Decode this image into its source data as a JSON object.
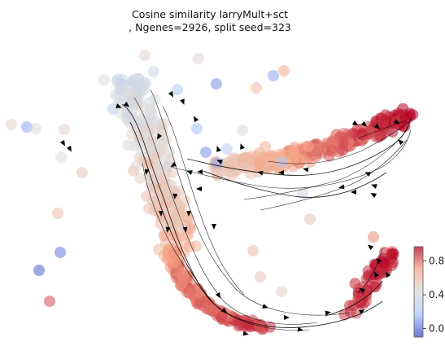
{
  "chart_data": {
    "type": "scatter",
    "title": "Cosine similarity larryMult+sct",
    "subtitle": ", Ngenes=2926, split seed=323",
    "xlabel": "",
    "ylabel": "",
    "axes_visible": false,
    "grid": false,
    "colormap": "coolwarm",
    "colorbar": {
      "vmin": -0.1,
      "vmax": 0.97,
      "ticks": [
        0.0,
        0.4,
        0.8
      ],
      "tick_labels": [
        "0.0",
        "0.4",
        "0.8"
      ],
      "placement": "bottom-right"
    },
    "overlay": "velocity stream lines with arrowheads",
    "scatter_groups": [
      {
        "group": "left stem (top-left, vertical)",
        "value_range": [
          0.3,
          0.7
        ]
      },
      {
        "group": "lower arc (bottom)",
        "value_range": [
          0.75,
          0.95
        ]
      },
      {
        "group": "right branch (upper-right, diagonal)",
        "value_range": [
          0.85,
          0.97
        ]
      },
      {
        "group": "scattered outliers",
        "value_range": [
          -0.1,
          0.4
        ]
      }
    ]
  },
  "colors": {
    "low": "#3b4cc0",
    "mid": "#dddddd",
    "high": "#b40426",
    "arrow": "#000000"
  }
}
